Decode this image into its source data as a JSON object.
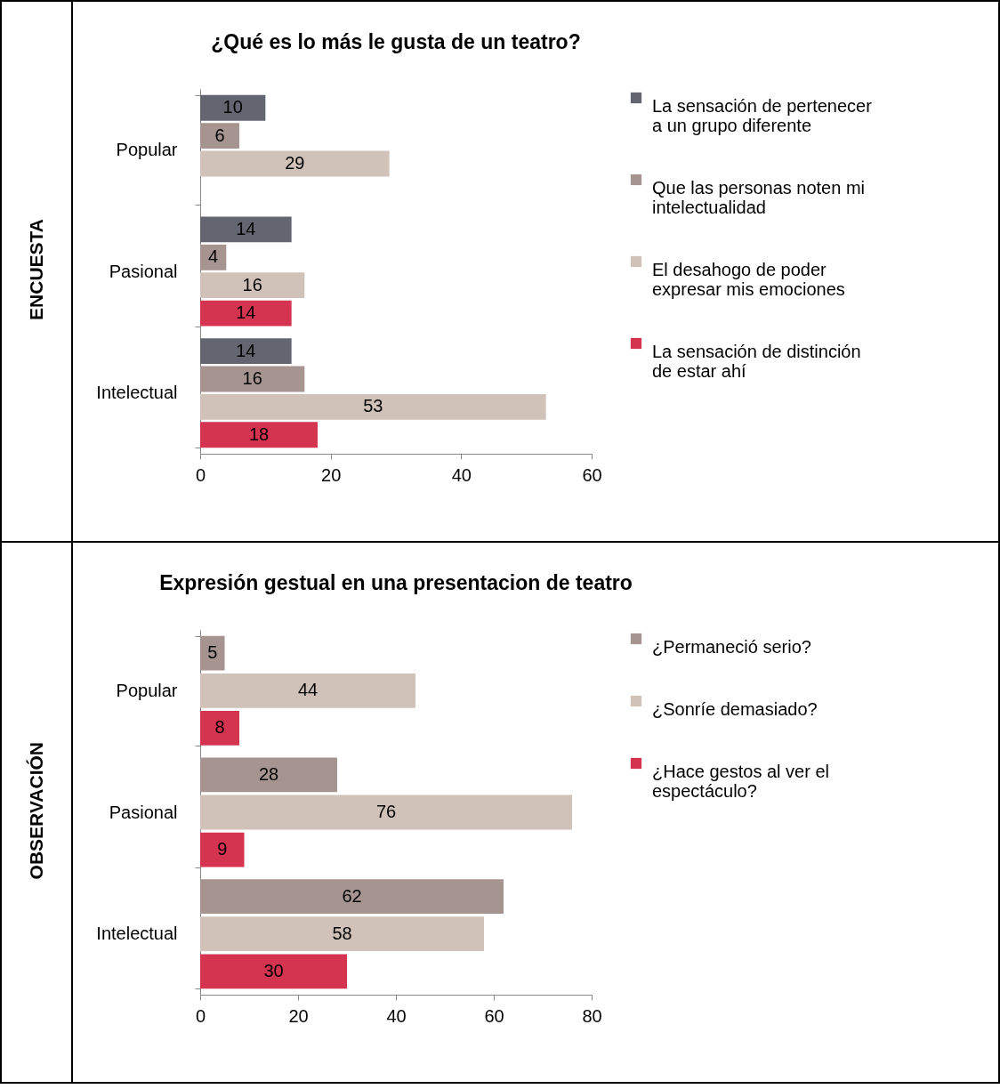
{
  "chart_data": [
    {
      "type": "bar",
      "orientation": "horizontal",
      "title": "¿Qué es lo más le gusta de un teatro?",
      "ylabel": "ENCUESTA",
      "categories": [
        "Popular",
        "Pasional",
        "Intelectual"
      ],
      "series": [
        {
          "name": "La sensación de pertenecer a un grupo diferente",
          "color": "#636670",
          "values": [
            10,
            14,
            14
          ]
        },
        {
          "name": "Que las personas noten mi intelectualidad",
          "color": "#a59490",
          "values": [
            6,
            4,
            16
          ]
        },
        {
          "name": "El desahogo de poder expresar mis emociones",
          "color": "#d0c2b8",
          "values": [
            29,
            16,
            53
          ]
        },
        {
          "name": "La sensación de distinción de estar ahí",
          "color": "#d4344f",
          "values": [
            null,
            14,
            18
          ]
        }
      ],
      "xlim": [
        0,
        60
      ],
      "xticks": [
        0,
        20,
        40,
        60
      ],
      "data_labels": true,
      "legend": "right",
      "grid": false
    },
    {
      "type": "bar",
      "orientation": "horizontal",
      "title": "Expresión gestual en una presentacion de teatro",
      "ylabel": "OBSERVACIÓN",
      "categories": [
        "Popular",
        "Pasional",
        "Intelectual"
      ],
      "series": [
        {
          "name": "¿Permaneció serio?",
          "color": "#a59490",
          "values": [
            5,
            28,
            62
          ]
        },
        {
          "name": "¿Sonríe demasiado?",
          "color": "#d0c2b8",
          "values": [
            44,
            76,
            58
          ]
        },
        {
          "name": "¿Hace gestos al ver el espectáculo?",
          "color": "#d4344f",
          "values": [
            8,
            9,
            30
          ]
        }
      ],
      "xlim": [
        0,
        80
      ],
      "xticks": [
        0,
        20,
        40,
        60,
        80
      ],
      "data_labels": true,
      "legend": "right",
      "grid": false
    }
  ]
}
